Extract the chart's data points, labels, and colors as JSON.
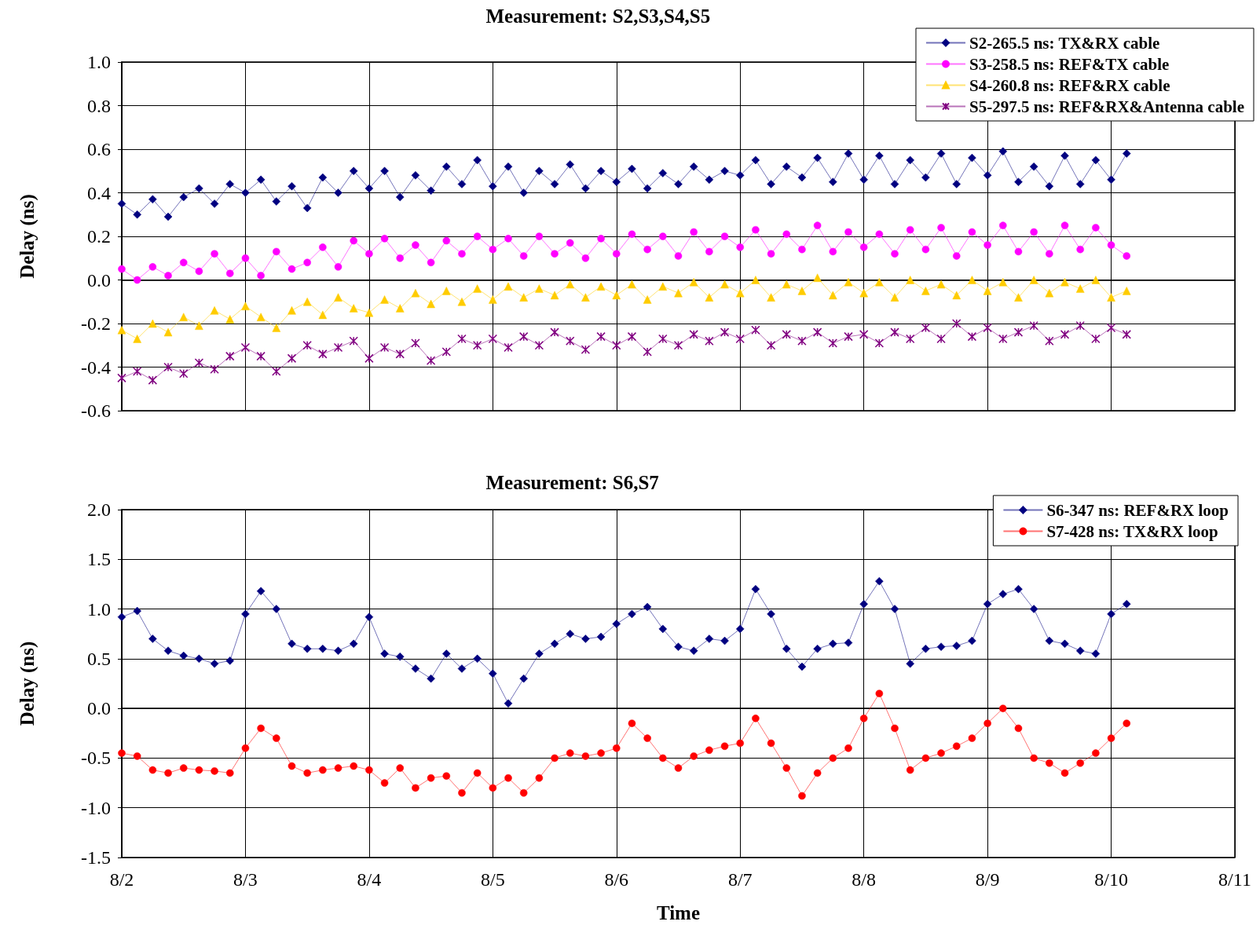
{
  "chart_data": [
    {
      "type": "line",
      "title": "Measurement: S2,S3,S4,S5",
      "ylabel": "Delay (ns)",
      "legend": "top right",
      "grid": true,
      "line_style": "solid",
      "tick_labels": "y",
      "xlim": [
        "--08-02",
        "--08-11"
      ],
      "xticks": [
        {
          "value": "--08-02",
          "label": null
        },
        {
          "value": "--08-03",
          "label": null
        },
        {
          "value": "--08-04",
          "label": null
        },
        {
          "value": "--08-05",
          "label": null
        },
        {
          "value": "--08-06",
          "label": null
        },
        {
          "value": "--08-07",
          "label": null
        },
        {
          "value": "--08-08",
          "label": null
        },
        {
          "value": "--08-09",
          "label": null
        },
        {
          "value": "--08-10",
          "label": null
        },
        {
          "value": "--08-11",
          "label": null
        }
      ],
      "ylim": [
        -0.6,
        1.0
      ],
      "yticks": [
        -0.6,
        -0.4,
        -0.2,
        {
          "value": 0,
          "label": "0.0"
        },
        0.2,
        0.4,
        0.6,
        0.8,
        {
          "value": 1,
          "label": "1.0"
        }
      ],
      "x": [
        "--08-02T00:00",
        "--08-02T03:00",
        "--08-02T06:00",
        "--08-02T09:00",
        "--08-02T12:00",
        "--08-02T15:00",
        "--08-02T18:00",
        "--08-02T21:00",
        "--08-03T00:00",
        "--08-03T03:00",
        "--08-03T06:00",
        "--08-03T09:00",
        "--08-03T12:00",
        "--08-03T15:00",
        "--08-03T18:00",
        "--08-03T21:00",
        "--08-04T00:00",
        "--08-04T03:00",
        "--08-04T06:00",
        "--08-04T09:00",
        "--08-04T12:00",
        "--08-04T15:00",
        "--08-04T18:00",
        "--08-04T21:00",
        "--08-05T00:00",
        "--08-05T03:00",
        "--08-05T06:00",
        "--08-05T09:00",
        "--08-05T12:00",
        "--08-05T15:00",
        "--08-05T18:00",
        "--08-05T21:00",
        "--08-06T00:00",
        "--08-06T03:00",
        "--08-06T06:00",
        "--08-06T09:00",
        "--08-06T12:00",
        "--08-06T15:00",
        "--08-06T18:00",
        "--08-06T21:00",
        "--08-07T00:00",
        "--08-07T03:00",
        "--08-07T06:00",
        "--08-07T09:00",
        "--08-07T12:00",
        "--08-07T15:00",
        "--08-07T18:00",
        "--08-07T21:00",
        "--08-08T00:00",
        "--08-08T03:00",
        "--08-08T06:00",
        "--08-08T09:00",
        "--08-08T12:00",
        "--08-08T15:00",
        "--08-08T18:00",
        "--08-08T21:00",
        "--08-09T00:00",
        "--08-09T03:00",
        "--08-09T06:00",
        "--08-09T09:00",
        "--08-09T12:00",
        "--08-09T15:00",
        "--08-09T18:00",
        "--08-09T21:00",
        "--08-10T00:00",
        "--08-10T03:00"
      ],
      "series": [
        {
          "name": "S2-265.5 ns: TX&RX cable",
          "color": "#000080",
          "marker": "diamond",
          "values": [
            0.35,
            0.3,
            0.37,
            0.29,
            0.38,
            0.42,
            0.35,
            0.44,
            0.4,
            0.46,
            0.36,
            0.43,
            0.33,
            0.47,
            0.4,
            0.5,
            0.42,
            0.5,
            0.38,
            0.48,
            0.41,
            0.52,
            0.44,
            0.55,
            0.43,
            0.52,
            0.4,
            0.5,
            0.44,
            0.53,
            0.42,
            0.5,
            0.45,
            0.51,
            0.42,
            0.49,
            0.44,
            0.52,
            0.46,
            0.5,
            0.48,
            0.55,
            0.44,
            0.52,
            0.47,
            0.56,
            0.45,
            0.58,
            0.46,
            0.57,
            0.44,
            0.55,
            0.47,
            0.58,
            0.44,
            0.56,
            0.48,
            0.59,
            0.45,
            0.52,
            0.43,
            0.57,
            0.44,
            0.55,
            0.46,
            0.58
          ]
        },
        {
          "name": "S3-258.5 ns: REF&TX cable",
          "color": "#ff00ff",
          "marker": "circle",
          "values": [
            0.05,
            0.0,
            0.06,
            0.02,
            0.08,
            0.04,
            0.12,
            0.03,
            0.1,
            0.02,
            0.13,
            0.05,
            0.08,
            0.15,
            0.06,
            0.18,
            0.12,
            0.19,
            0.1,
            0.16,
            0.08,
            0.18,
            0.12,
            0.2,
            0.14,
            0.19,
            0.11,
            0.2,
            0.12,
            0.17,
            0.1,
            0.19,
            0.12,
            0.21,
            0.14,
            0.2,
            0.11,
            0.22,
            0.13,
            0.2,
            0.15,
            0.23,
            0.12,
            0.21,
            0.14,
            0.25,
            0.13,
            0.22,
            0.15,
            0.21,
            0.12,
            0.23,
            0.14,
            0.24,
            0.11,
            0.22,
            0.16,
            0.25,
            0.13,
            0.22,
            0.12,
            0.25,
            0.14,
            0.24,
            0.16,
            0.11
          ]
        },
        {
          "name": "S4-260.8 ns: REF&RX cable",
          "color": "#ffcc00",
          "marker": "triangle",
          "values": [
            -0.23,
            -0.27,
            -0.2,
            -0.24,
            -0.17,
            -0.21,
            -0.14,
            -0.18,
            -0.12,
            -0.17,
            -0.22,
            -0.14,
            -0.1,
            -0.16,
            -0.08,
            -0.13,
            -0.15,
            -0.09,
            -0.13,
            -0.06,
            -0.11,
            -0.05,
            -0.1,
            -0.04,
            -0.09,
            -0.03,
            -0.08,
            -0.04,
            -0.07,
            -0.02,
            -0.08,
            -0.03,
            -0.07,
            -0.02,
            -0.09,
            -0.03,
            -0.06,
            -0.01,
            -0.08,
            -0.02,
            -0.06,
            0.0,
            -0.08,
            -0.02,
            -0.05,
            0.01,
            -0.07,
            -0.01,
            -0.06,
            -0.01,
            -0.08,
            0.0,
            -0.05,
            -0.02,
            -0.07,
            0.0,
            -0.05,
            -0.01,
            -0.08,
            0.0,
            -0.06,
            -0.01,
            -0.04,
            0.0,
            -0.08,
            -0.05
          ]
        },
        {
          "name": "S5-297.5 ns: REF&RX&Antenna cable",
          "color": "#800080",
          "marker": "cross",
          "values": [
            -0.45,
            -0.42,
            -0.46,
            -0.4,
            -0.43,
            -0.38,
            -0.41,
            -0.35,
            -0.31,
            -0.35,
            -0.42,
            -0.36,
            -0.3,
            -0.34,
            -0.31,
            -0.28,
            -0.36,
            -0.31,
            -0.34,
            -0.29,
            -0.37,
            -0.33,
            -0.27,
            -0.3,
            -0.27,
            -0.31,
            -0.26,
            -0.3,
            -0.24,
            -0.28,
            -0.32,
            -0.26,
            -0.3,
            -0.26,
            -0.33,
            -0.27,
            -0.3,
            -0.25,
            -0.28,
            -0.24,
            -0.27,
            -0.23,
            -0.3,
            -0.25,
            -0.28,
            -0.24,
            -0.29,
            -0.26,
            -0.25,
            -0.29,
            -0.24,
            -0.27,
            -0.22,
            -0.27,
            -0.2,
            -0.26,
            -0.22,
            -0.27,
            -0.24,
            -0.21,
            -0.28,
            -0.25,
            -0.21,
            -0.27,
            -0.22,
            -0.25
          ]
        }
      ]
    },
    {
      "type": "line",
      "title": "Measurement: S6,S7",
      "xlabel": "Time",
      "ylabel": "Delay (ns)",
      "legend": "top right",
      "grid": true,
      "line_style": "solid",
      "xlim": [
        "--08-02",
        "--08-11"
      ],
      "xticks": [
        {
          "value": "--08-02",
          "label": "8/2"
        },
        {
          "value": "--08-03",
          "label": "8/3"
        },
        {
          "value": "--08-04",
          "label": "8/4"
        },
        {
          "value": "--08-05",
          "label": "8/5"
        },
        {
          "value": "--08-06",
          "label": "8/6"
        },
        {
          "value": "--08-07",
          "label": "8/7"
        },
        {
          "value": "--08-08",
          "label": "8/8"
        },
        {
          "value": "--08-09",
          "label": "8/9"
        },
        {
          "value": "--08-10",
          "label": "8/10"
        },
        {
          "value": "--08-11",
          "label": "8/11"
        }
      ],
      "ylim": [
        -1.5,
        2.0
      ],
      "yticks": [
        -1.5,
        {
          "value": -1,
          "label": "-1.0"
        },
        -0.5,
        {
          "value": 0,
          "label": "0.0"
        },
        0.5,
        {
          "value": 1,
          "label": "1.0"
        },
        1.5,
        {
          "value": 2,
          "label": "2.0"
        }
      ],
      "x": [
        "--08-02T00:00",
        "--08-02T03:00",
        "--08-02T06:00",
        "--08-02T09:00",
        "--08-02T12:00",
        "--08-02T15:00",
        "--08-02T18:00",
        "--08-02T21:00",
        "--08-03T00:00",
        "--08-03T03:00",
        "--08-03T06:00",
        "--08-03T09:00",
        "--08-03T12:00",
        "--08-03T15:00",
        "--08-03T18:00",
        "--08-03T21:00",
        "--08-04T00:00",
        "--08-04T03:00",
        "--08-04T06:00",
        "--08-04T09:00",
        "--08-04T12:00",
        "--08-04T15:00",
        "--08-04T18:00",
        "--08-04T21:00",
        "--08-05T00:00",
        "--08-05T03:00",
        "--08-05T06:00",
        "--08-05T09:00",
        "--08-05T12:00",
        "--08-05T15:00",
        "--08-05T18:00",
        "--08-05T21:00",
        "--08-06T00:00",
        "--08-06T03:00",
        "--08-06T06:00",
        "--08-06T09:00",
        "--08-06T12:00",
        "--08-06T15:00",
        "--08-06T18:00",
        "--08-06T21:00",
        "--08-07T00:00",
        "--08-07T03:00",
        "--08-07T06:00",
        "--08-07T09:00",
        "--08-07T12:00",
        "--08-07T15:00",
        "--08-07T18:00",
        "--08-07T21:00",
        "--08-08T00:00",
        "--08-08T03:00",
        "--08-08T06:00",
        "--08-08T09:00",
        "--08-08T12:00",
        "--08-08T15:00",
        "--08-08T18:00",
        "--08-08T21:00",
        "--08-09T00:00",
        "--08-09T03:00",
        "--08-09T06:00",
        "--08-09T09:00",
        "--08-09T12:00",
        "--08-09T15:00",
        "--08-09T18:00",
        "--08-09T21:00",
        "--08-10T00:00",
        "--08-10T03:00"
      ],
      "series": [
        {
          "name": "S6-347 ns: REF&RX loop",
          "color": "#000080",
          "marker": "diamond",
          "values": [
            0.92,
            0.98,
            0.7,
            0.58,
            0.53,
            0.5,
            0.45,
            0.48,
            0.95,
            1.18,
            1.0,
            0.65,
            0.6,
            0.6,
            0.58,
            0.65,
            0.92,
            0.55,
            0.52,
            0.4,
            0.3,
            0.55,
            0.4,
            0.5,
            0.35,
            0.05,
            0.3,
            0.55,
            0.65,
            0.75,
            0.7,
            0.72,
            0.85,
            0.95,
            1.02,
            0.8,
            0.62,
            0.58,
            0.7,
            0.68,
            0.8,
            1.2,
            0.95,
            0.6,
            0.42,
            0.6,
            0.65,
            0.66,
            1.05,
            1.28,
            1.0,
            0.45,
            0.6,
            0.62,
            0.63,
            0.68,
            1.05,
            1.15,
            1.2,
            1.0,
            0.68,
            0.65,
            0.58,
            0.55,
            0.95,
            1.05
          ]
        },
        {
          "name": "S7-428 ns: TX&RX loop",
          "color": "#ff0000",
          "marker": "circle",
          "values": [
            -0.45,
            -0.48,
            -0.62,
            -0.65,
            -0.6,
            -0.62,
            -0.63,
            -0.65,
            -0.4,
            -0.2,
            -0.3,
            -0.58,
            -0.65,
            -0.62,
            -0.6,
            -0.58,
            -0.62,
            -0.75,
            -0.6,
            -0.8,
            -0.7,
            -0.68,
            -0.85,
            -0.65,
            -0.8,
            -0.7,
            -0.85,
            -0.7,
            -0.5,
            -0.45,
            -0.48,
            -0.45,
            -0.4,
            -0.15,
            -0.3,
            -0.5,
            -0.6,
            -0.48,
            -0.42,
            -0.38,
            -0.35,
            -0.1,
            -0.35,
            -0.6,
            -0.88,
            -0.65,
            -0.5,
            -0.4,
            -0.1,
            0.15,
            -0.2,
            -0.62,
            -0.5,
            -0.45,
            -0.38,
            -0.3,
            -0.15,
            0.0,
            -0.2,
            -0.5,
            -0.55,
            -0.65,
            -0.55,
            -0.45,
            -0.3,
            -0.15
          ]
        }
      ]
    }
  ]
}
